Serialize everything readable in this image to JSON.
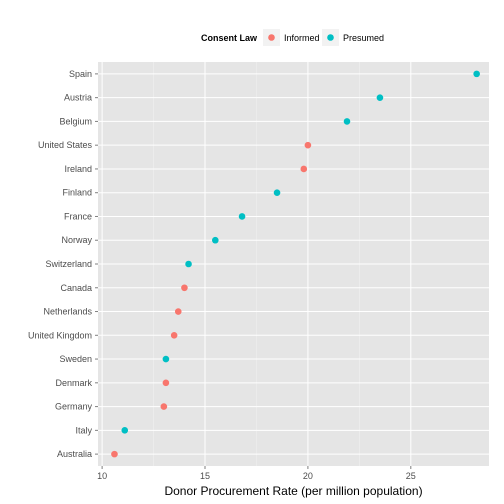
{
  "chart_data": {
    "type": "scatter",
    "xlabel": "Donor Procurement Rate (per million population)",
    "ylabel": "",
    "xlim": [
      9.8,
      28.8
    ],
    "xticks": [
      10,
      15,
      20,
      25
    ],
    "grid": true,
    "legend": {
      "title": "Consent Law",
      "placement": "top",
      "entries": [
        {
          "name": "Informed",
          "color": "#F8766D"
        },
        {
          "name": "Presumed",
          "color": "#00BFC4"
        }
      ]
    },
    "points": [
      {
        "country": "Spain",
        "value": 28.2,
        "consent": "Presumed"
      },
      {
        "country": "Austria",
        "value": 23.5,
        "consent": "Presumed"
      },
      {
        "country": "Belgium",
        "value": 21.9,
        "consent": "Presumed"
      },
      {
        "country": "United States",
        "value": 20.0,
        "consent": "Informed"
      },
      {
        "country": "Ireland",
        "value": 19.8,
        "consent": "Informed"
      },
      {
        "country": "Finland",
        "value": 18.5,
        "consent": "Presumed"
      },
      {
        "country": "France",
        "value": 16.8,
        "consent": "Presumed"
      },
      {
        "country": "Norway",
        "value": 15.5,
        "consent": "Presumed"
      },
      {
        "country": "Switzerland",
        "value": 14.2,
        "consent": "Presumed"
      },
      {
        "country": "Canada",
        "value": 14.0,
        "consent": "Informed"
      },
      {
        "country": "Netherlands",
        "value": 13.7,
        "consent": "Informed"
      },
      {
        "country": "United Kingdom",
        "value": 13.5,
        "consent": "Informed"
      },
      {
        "country": "Sweden",
        "value": 13.1,
        "consent": "Presumed"
      },
      {
        "country": "Denmark",
        "value": 13.1,
        "consent": "Informed"
      },
      {
        "country": "Germany",
        "value": 13.0,
        "consent": "Informed"
      },
      {
        "country": "Italy",
        "value": 11.1,
        "consent": "Presumed"
      },
      {
        "country": "Australia",
        "value": 10.6,
        "consent": "Informed"
      }
    ]
  }
}
